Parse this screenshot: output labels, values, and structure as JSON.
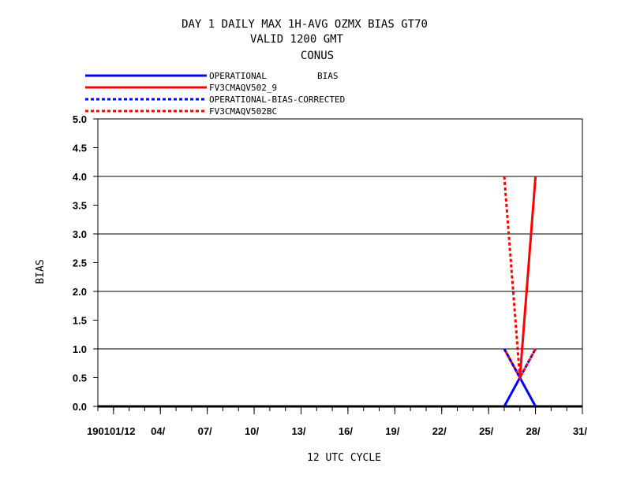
{
  "chart_data": {
    "type": "line",
    "title_lines": [
      "DAY 1 DAILY MAX   1H-AVG OZMX BIAS GT70",
      "VALID 1200 GMT",
      "CONUS"
    ],
    "xlabel": "12 UTC CYCLE",
    "ylabel": "BIAS",
    "xlim": [
      0,
      31
    ],
    "ylim": [
      0,
      5
    ],
    "grid": "horizontal",
    "reference_line": 0,
    "x_ticks": [
      {
        "x": 1,
        "label": "190101/12"
      },
      {
        "x": 4,
        "label": "04/"
      },
      {
        "x": 7,
        "label": "07/"
      },
      {
        "x": 10,
        "label": "10/"
      },
      {
        "x": 13,
        "label": "13/"
      },
      {
        "x": 16,
        "label": "16/"
      },
      {
        "x": 19,
        "label": "19/"
      },
      {
        "x": 22,
        "label": "22/"
      },
      {
        "x": 25,
        "label": "25/"
      },
      {
        "x": 28,
        "label": "28/"
      },
      {
        "x": 31,
        "label": "31/"
      }
    ],
    "y_ticks": [
      "0.0",
      "0.5",
      "1.0",
      "1.5",
      "2.0",
      "2.5",
      "3.0",
      "3.5",
      "4.0",
      "4.5",
      "5.0"
    ],
    "legend": {
      "placement": "top-left",
      "extra_label": "BIAS"
    },
    "series": [
      {
        "name": "OPERATIONAL",
        "color": "#0000ff",
        "dash": "solid",
        "x": [
          26,
          27,
          28
        ],
        "y": [
          0.0,
          0.5,
          0.0
        ]
      },
      {
        "name": "FV3CMAQV502_9",
        "color": "#ff0000",
        "dash": "solid",
        "x": [
          26,
          27,
          28
        ],
        "y": [
          1.0,
          0.5,
          4.0
        ]
      },
      {
        "name": "OPERATIONAL-BIAS-CORRECTED",
        "color": "#0000ff",
        "dash": "dashed",
        "x": [
          26,
          27,
          28
        ],
        "y": [
          1.0,
          0.5,
          1.0
        ]
      },
      {
        "name": "FV3CMAQV502BC",
        "color": "#ff0000",
        "dash": "dashed",
        "x": [
          26,
          27,
          28
        ],
        "y": [
          4.0,
          0.5,
          1.0
        ]
      }
    ]
  }
}
